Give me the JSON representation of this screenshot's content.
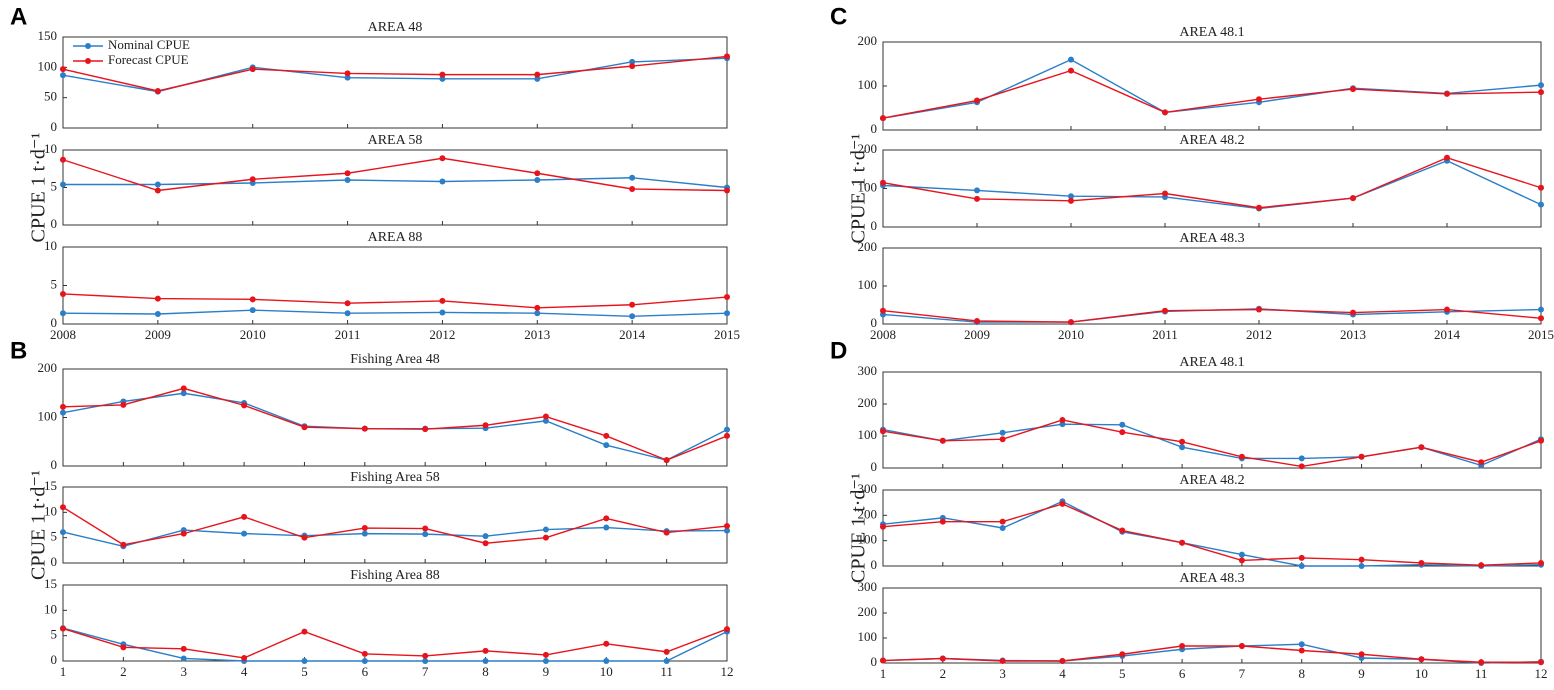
{
  "chart_data": [
    {
      "type": "line",
      "panel": "A",
      "ylabel": "CPUE 1 t·d⁻¹",
      "x": [
        2008,
        2009,
        2010,
        2011,
        2012,
        2013,
        2014,
        2015
      ],
      "xlim": [
        2008,
        2015
      ],
      "xticks": [
        2008,
        2009,
        2010,
        2011,
        2012,
        2013,
        2014,
        2015
      ],
      "subplots": [
        {
          "title": "AREA 48",
          "ylim": [
            0,
            150
          ],
          "yticks": [
            0,
            50,
            100,
            150
          ],
          "legend": "upper left",
          "series": [
            {
              "name": "Nominal CPUE",
              "color": "#2a7fc9",
              "values": [
                87,
                60,
                100,
                83,
                81,
                81,
                109,
                115
              ]
            },
            {
              "name": "Forecast CPUE",
              "color": "#e8141c",
              "values": [
                97,
                61,
                97,
                90,
                88,
                88,
                102,
                118
              ]
            }
          ]
        },
        {
          "title": "AREA 58",
          "ylim": [
            0,
            10
          ],
          "yticks": [
            0,
            5,
            10
          ],
          "series": [
            {
              "color": "#2a7fc9",
              "values": [
                5.4,
                5.4,
                5.6,
                6.0,
                5.8,
                6.0,
                6.3,
                5.0
              ]
            },
            {
              "color": "#e8141c",
              "values": [
                8.7,
                4.6,
                6.1,
                6.9,
                8.9,
                6.9,
                4.8,
                4.6
              ]
            }
          ]
        },
        {
          "title": "AREA 88",
          "ylim": [
            0,
            10
          ],
          "yticks": [
            0,
            5,
            10
          ],
          "series": [
            {
              "color": "#2a7fc9",
              "values": [
                1.4,
                1.3,
                1.8,
                1.4,
                1.5,
                1.4,
                1.0,
                1.4
              ]
            },
            {
              "color": "#e8141c",
              "values": [
                3.9,
                3.3,
                3.2,
                2.7,
                3.0,
                2.1,
                2.5,
                3.5
              ]
            }
          ]
        }
      ]
    },
    {
      "type": "line",
      "panel": "B",
      "ylabel": "CPUE 1 t·d⁻¹",
      "x": [
        1,
        2,
        3,
        4,
        5,
        6,
        7,
        8,
        9,
        10,
        11,
        12
      ],
      "xlim": [
        1,
        12
      ],
      "xticks": [
        1,
        2,
        3,
        4,
        5,
        6,
        7,
        8,
        9,
        10,
        11,
        12
      ],
      "subplots": [
        {
          "title": "Fishing Area 48",
          "ylim": [
            0,
            200
          ],
          "yticks": [
            0,
            100,
            200
          ],
          "series": [
            {
              "color": "#2a7fc9",
              "values": [
                110,
                133,
                150,
                130,
                82,
                77,
                77,
                78,
                93,
                43,
                12,
                75
              ]
            },
            {
              "color": "#e8141c",
              "values": [
                122,
                126,
                160,
                125,
                80,
                77,
                76,
                84,
                102,
                62,
                12,
                62
              ]
            }
          ]
        },
        {
          "title": "Fishing Area 58",
          "ylim": [
            0,
            15
          ],
          "yticks": [
            0,
            5,
            10,
            15
          ],
          "series": [
            {
              "color": "#2a7fc9",
              "values": [
                6.1,
                3.3,
                6.5,
                5.8,
                5.4,
                5.8,
                5.7,
                5.3,
                6.6,
                7.0,
                6.3,
                6.4
              ]
            },
            {
              "color": "#e8141c",
              "values": [
                11,
                3.6,
                5.8,
                9.1,
                5.0,
                6.9,
                6.8,
                3.9,
                5.0,
                8.8,
                6.0,
                7.3
              ]
            }
          ]
        },
        {
          "title": "Fishing Area 88",
          "ylim": [
            0,
            15
          ],
          "yticks": [
            0,
            5,
            10,
            15
          ],
          "series": [
            {
              "color": "#2a7fc9",
              "values": [
                6.5,
                3.3,
                0.5,
                0,
                0,
                0,
                0,
                0,
                0,
                0,
                0,
                5.8
              ]
            },
            {
              "color": "#e8141c",
              "values": [
                6.4,
                2.7,
                2.4,
                0.6,
                5.8,
                1.4,
                1.0,
                2.0,
                1.2,
                3.4,
                1.8,
                6.3
              ]
            }
          ]
        }
      ]
    },
    {
      "type": "line",
      "panel": "C",
      "ylabel": "CPUE 1 t·d⁻¹",
      "x": [
        2008,
        2009,
        2010,
        2011,
        2012,
        2013,
        2014,
        2015
      ],
      "xlim": [
        2008,
        2015
      ],
      "xticks": [
        2008,
        2009,
        2010,
        2011,
        2012,
        2013,
        2014,
        2015
      ],
      "subplots": [
        {
          "title": "AREA 48.1",
          "ylim": [
            0,
            200
          ],
          "yticks": [
            0,
            100,
            200
          ],
          "series": [
            {
              "color": "#2a7fc9",
              "values": [
                27,
                63,
                160,
                40,
                63,
                95,
                83,
                102
              ]
            },
            {
              "color": "#e8141c",
              "values": [
                27,
                67,
                135,
                40,
                70,
                93,
                82,
                86
              ]
            }
          ]
        },
        {
          "title": "AREA 48.2",
          "ylim": [
            0,
            200
          ],
          "yticks": [
            0,
            100,
            200
          ],
          "series": [
            {
              "color": "#2a7fc9",
              "values": [
                108,
                95,
                80,
                78,
                48,
                75,
                172,
                58
              ]
            },
            {
              "color": "#e8141c",
              "values": [
                115,
                73,
                68,
                87,
                50,
                75,
                180,
                102
              ]
            }
          ]
        },
        {
          "title": "AREA 48.3",
          "ylim": [
            0,
            200
          ],
          "yticks": [
            0,
            100,
            200
          ],
          "series": [
            {
              "color": "#2a7fc9",
              "values": [
                25,
                5,
                5,
                33,
                40,
                25,
                32,
                38
              ]
            },
            {
              "color": "#e8141c",
              "values": [
                35,
                8,
                5,
                35,
                38,
                30,
                38,
                15
              ]
            }
          ]
        }
      ]
    },
    {
      "type": "line",
      "panel": "D",
      "ylabel": "CPUE 1 t·d⁻¹",
      "x": [
        1,
        2,
        3,
        4,
        5,
        6,
        7,
        8,
        9,
        10,
        11,
        12
      ],
      "xlim": [
        1,
        12
      ],
      "xticks": [
        1,
        2,
        3,
        4,
        5,
        6,
        7,
        8,
        9,
        10,
        11,
        12
      ],
      "subplots": [
        {
          "title": "AREA 48.1",
          "ylim": [
            0,
            300
          ],
          "yticks": [
            0,
            100,
            200,
            300
          ],
          "series": [
            {
              "color": "#2a7fc9",
              "values": [
                120,
                85,
                110,
                137,
                135,
                65,
                30,
                30,
                35,
                65,
                8,
                90
              ]
            },
            {
              "color": "#e8141c",
              "values": [
                115,
                85,
                90,
                150,
                112,
                82,
                35,
                5,
                35,
                65,
                18,
                85
              ]
            }
          ]
        },
        {
          "title": "AREA 48.2",
          "ylim": [
            0,
            300
          ],
          "yticks": [
            0,
            100,
            200,
            300
          ],
          "series": [
            {
              "color": "#2a7fc9",
              "values": [
                165,
                190,
                150,
                255,
                135,
                92,
                45,
                0,
                0,
                5,
                0,
                5
              ]
            },
            {
              "color": "#e8141c",
              "values": [
                155,
                175,
                175,
                245,
                140,
                92,
                22,
                32,
                25,
                12,
                3,
                12
              ]
            }
          ]
        },
        {
          "title": "AREA 48.3",
          "ylim": [
            0,
            300
          ],
          "yticks": [
            0,
            100,
            200,
            300
          ],
          "series": [
            {
              "color": "#2a7fc9",
              "values": [
                10,
                18,
                10,
                8,
                28,
                55,
                68,
                75,
                20,
                15,
                0,
                5
              ]
            },
            {
              "color": "#e8141c",
              "values": [
                10,
                18,
                8,
                8,
                35,
                68,
                68,
                50,
                35,
                15,
                3,
                3
              ]
            }
          ]
        }
      ]
    }
  ]
}
